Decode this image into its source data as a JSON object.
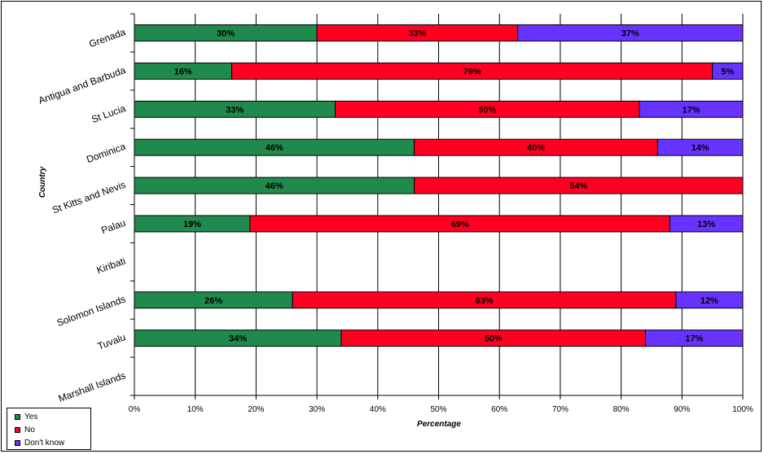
{
  "chart_data": {
    "type": "bar",
    "orientation": "horizontal",
    "stacked": "percent",
    "title": "",
    "xlabel": "Percentage",
    "ylabel": "Country",
    "xlim": [
      0,
      100
    ],
    "xticks": [
      "0%",
      "10%",
      "20%",
      "30%",
      "40%",
      "50%",
      "60%",
      "70%",
      "80%",
      "90%",
      "100%"
    ],
    "grid": true,
    "legend_position": "bottom-left",
    "categories": [
      "Grenada",
      "Antigua and Barbuda",
      "St Lucia",
      "Dominica",
      "St Kitts and Nevis",
      "Palau",
      "Kiribati",
      "Solomon Islands",
      "Tuvalu",
      "Marshall Islands"
    ],
    "series": [
      {
        "name": "Yes",
        "color": "#1F8A4C",
        "values": [
          30,
          16,
          33,
          46,
          46,
          19,
          null,
          26,
          34,
          null
        ],
        "labels": [
          "30%",
          "16%",
          "33%",
          "46%",
          "46%",
          "19%",
          "",
          "26%",
          "34%",
          ""
        ]
      },
      {
        "name": "No",
        "color": "#FF0022",
        "values": [
          33,
          79,
          50,
          40,
          54,
          69,
          null,
          63,
          50,
          null
        ],
        "labels": [
          "33%",
          "79%",
          "50%",
          "40%",
          "54%",
          "69%",
          "",
          "63%",
          "50%",
          ""
        ]
      },
      {
        "name": "Don't know",
        "color": "#6633FF",
        "values": [
          37,
          5,
          17,
          14,
          0,
          13,
          null,
          12,
          17,
          null
        ],
        "labels": [
          "37%",
          "5%",
          "17%",
          "14%",
          "",
          "13%",
          "",
          "12%",
          "17%",
          ""
        ]
      }
    ]
  }
}
